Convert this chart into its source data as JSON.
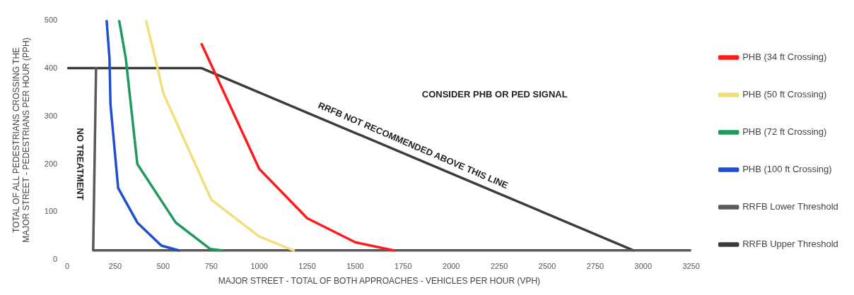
{
  "chart_data": {
    "type": "line",
    "xlabel": "MAJOR STREET - TOTAL OF BOTH APPROACHES - VEHICLES PER HOUR (VPH)",
    "ylabel": "TOTAL OF ALL PEDESTRIANS CROSSING THE MAJOR STREET - PEDESTRIANS PER HOUR (PPH)",
    "series": [
      {
        "name": "PHB (34 ft Crossing)",
        "color": "#ff1a1a",
        "x": [
          700,
          1000,
          1250,
          1500,
          1700
        ],
        "values": [
          450,
          190,
          87,
          37,
          20
        ]
      },
      {
        "name": "PHB (50 ft Crossing)",
        "color": "#f2de7a",
        "x": [
          410,
          470,
          500,
          750,
          1000,
          1180
        ],
        "values": [
          500,
          400,
          348,
          126,
          49,
          20
        ]
      },
      {
        "name": "PHB (72 ft Crossing)",
        "color": "#1f9a5a",
        "x": [
          270,
          305,
          365,
          565,
          745,
          805
        ],
        "values": [
          500,
          420,
          200,
          78,
          23,
          20
        ]
      },
      {
        "name": "PHB (100 ft Crossing)",
        "color": "#1f4fd0",
        "x": [
          205,
          220,
          225,
          265,
          365,
          490,
          580
        ],
        "values": [
          500,
          420,
          325,
          150,
          78,
          30,
          20
        ]
      },
      {
        "name": "RRFB Lower Threshold",
        "color": "#5a5a5a",
        "x": [
          150,
          135,
          3250
        ],
        "values": [
          400,
          20,
          20
        ]
      },
      {
        "name": "RRFB Upper Threshold",
        "color": "#3c3c3c",
        "x": [
          0,
          700,
          2950
        ],
        "values": [
          400,
          400,
          20
        ]
      }
    ],
    "xlim": [
      0,
      3250
    ],
    "xticks": [
      0,
      250,
      500,
      750,
      1000,
      1250,
      1500,
      1750,
      2000,
      2250,
      2500,
      2750,
      3000,
      3250
    ],
    "ylim": [
      0,
      500
    ],
    "yticks": [
      0,
      100,
      200,
      300,
      400,
      500
    ],
    "annotations": [
      "CONSIDER PHB OR PED SIGNAL",
      "NO TREATMENT",
      "RRFB NOT RECOMMENDED ABOVE THIS LINE"
    ],
    "grid": false,
    "legend": "right",
    "marker": "none",
    "line_style": "solid"
  }
}
